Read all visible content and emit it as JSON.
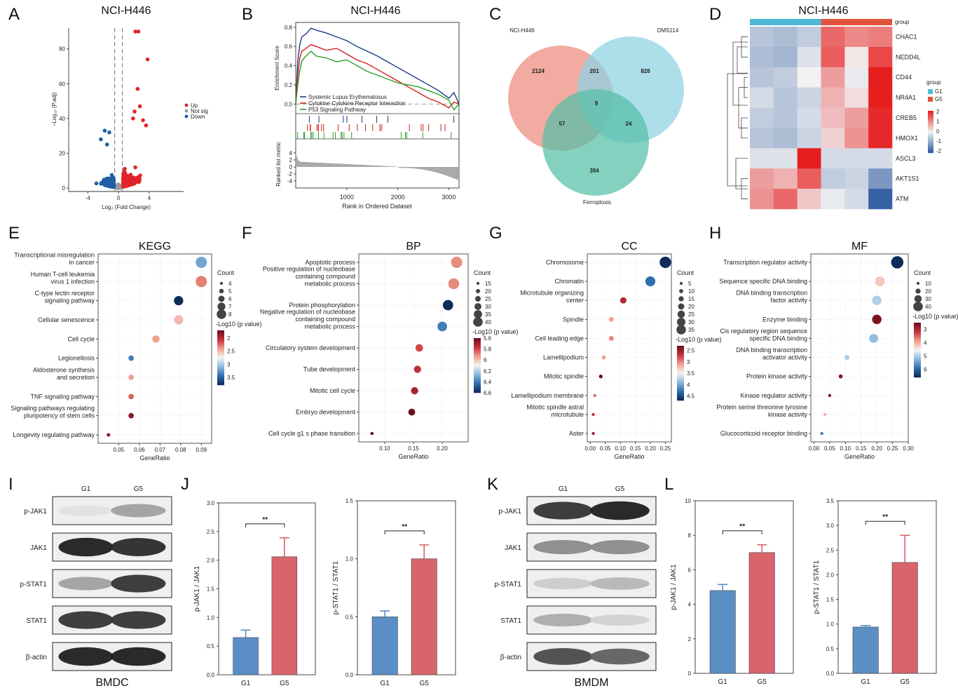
{
  "panels": {
    "A": "A",
    "B": "B",
    "C": "C",
    "D": "D",
    "E": "E",
    "F": "F",
    "G": "G",
    "H": "H",
    "I": "I",
    "J": "J",
    "K": "K",
    "L": "L"
  },
  "colors": {
    "up": "#e0242b",
    "down": "#1f5fa6",
    "notsig": "#9a9a9a",
    "venn1": "#eb8a7c",
    "venn2": "#8ed3e3",
    "venn3": "#55bfa8",
    "barG1": "#5b8ec4",
    "barG5": "#d9646c",
    "heat_low": "#2c5aa0",
    "heat_mid": "#f2f2f2",
    "heat_high": "#e61e1e",
    "group_g1": "#4db8d8",
    "group_g5": "#e0533a"
  },
  "chart_data": [
    {
      "id": "A",
      "type": "scatter",
      "title": "NCI-H446",
      "xlabel": "Log₂ (Fold Change)",
      "ylabel": "−Log₁₀ (P.adj)",
      "xticks": [
        -4,
        0,
        4
      ],
      "yticks": [
        0,
        20,
        40,
        60,
        80
      ],
      "xlim": [
        -6.5,
        8.5
      ],
      "ylim": [
        -2,
        92
      ],
      "thresholds_x": [
        -0.5,
        0.5
      ],
      "legend": [
        "Up",
        "Not sig",
        "Down"
      ],
      "up_highlights": [
        [
          2.2,
          90
        ],
        [
          2.6,
          90
        ],
        [
          3.8,
          74
        ],
        [
          2.5,
          57
        ],
        [
          3.6,
          36
        ],
        [
          2.1,
          44
        ],
        [
          1.9,
          40
        ],
        [
          2.8,
          47
        ],
        [
          3.2,
          39
        ]
      ],
      "down_highlights": [
        [
          -1.8,
          33
        ],
        [
          -1.2,
          32
        ],
        [
          -2.3,
          28
        ],
        [
          -1.5,
          25
        ]
      ]
    },
    {
      "id": "B",
      "type": "line",
      "title": "NCI-H446",
      "xlabel": "Rank in Ordered Dataset",
      "ylabel": "Enrichment Score",
      "ylabel2": "Ranked list metric",
      "xticks": [
        1000,
        2000,
        3000
      ],
      "yticks": [
        0.0,
        0.2,
        0.4,
        0.6,
        0.8
      ],
      "yticks2": [
        4,
        2,
        0,
        -2,
        -4
      ],
      "xlim": [
        0,
        3200
      ],
      "ylim": [
        -0.1,
        0.85
      ],
      "series": [
        {
          "name": "Systemic Lupus Erythematosus",
          "color": "#1a3a8a",
          "x": [
            0,
            40,
            80,
            120,
            200,
            300,
            400,
            600,
            800,
            1000,
            1200,
            1400,
            1600,
            1800,
            2000,
            2200,
            2400,
            2600,
            2800,
            3000,
            3100,
            3200
          ],
          "y": [
            0,
            0.45,
            0.62,
            0.7,
            0.73,
            0.79,
            0.77,
            0.74,
            0.7,
            0.66,
            0.6,
            0.55,
            0.5,
            0.44,
            0.38,
            0.32,
            0.26,
            0.2,
            0.14,
            0.06,
            0.12,
            0.0
          ]
        },
        {
          "name": "Cytokine Cytokine Receptor Interaction",
          "color": "#d42020",
          "x": [
            0,
            40,
            80,
            120,
            200,
            300,
            400,
            600,
            800,
            1000,
            1200,
            1400,
            1600,
            1800,
            2000,
            2200,
            2400,
            2600,
            2800,
            3000,
            3100,
            3200
          ],
          "y": [
            0,
            0.3,
            0.48,
            0.55,
            0.58,
            0.62,
            0.6,
            0.56,
            0.58,
            0.52,
            0.46,
            0.42,
            0.36,
            0.3,
            0.24,
            0.18,
            0.12,
            0.06,
            0.02,
            -0.04,
            0.02,
            0.0
          ]
        },
        {
          "name": "P53 Signaling Pathway",
          "color": "#2aa02a",
          "x": [
            0,
            40,
            80,
            120,
            200,
            300,
            400,
            600,
            800,
            1000,
            1200,
            1400,
            1600,
            1800,
            2000,
            2200,
            2400,
            2600,
            2800,
            3000,
            3100,
            3200
          ],
          "y": [
            0,
            0.2,
            0.35,
            0.45,
            0.5,
            0.55,
            0.5,
            0.48,
            0.44,
            0.46,
            0.4,
            0.34,
            0.3,
            0.26,
            0.22,
            0.2,
            0.18,
            0.14,
            0.1,
            0.04,
            -0.06,
            0.0
          ]
        }
      ]
    },
    {
      "id": "C",
      "type": "venn",
      "sets": [
        "NCI-H446",
        "DMS114",
        "Ferroptosis"
      ],
      "regions": {
        "a_only": "2124",
        "b_only": "828",
        "c_only": "394",
        "ab": "201",
        "ac": "57",
        "bc": "24",
        "abc": "9"
      }
    },
    {
      "id": "D",
      "type": "heatmap",
      "title": "NCI-H446",
      "rows": [
        "CHAC1",
        "NEDD4L",
        "CD44",
        "NR4A1",
        "CREB5",
        "HMOX1",
        "ASCL3",
        "AKT1S1",
        "ATM"
      ],
      "group_label": "group",
      "groups": [
        "G1",
        "G5"
      ],
      "scale_ticks": [
        "2",
        "1",
        "0",
        "-1",
        "-2"
      ],
      "values": [
        [
          -0.6,
          -0.7,
          -0.5,
          1.3,
          1.0,
          1.1
        ],
        [
          -0.7,
          -0.8,
          -0.2,
          1.4,
          0.1,
          1.6
        ],
        [
          -0.6,
          -0.5,
          0.0,
          0.8,
          -0.1,
          2.0
        ],
        [
          -0.3,
          -0.6,
          -0.4,
          0.6,
          0.2,
          2.0
        ],
        [
          -0.5,
          -0.6,
          -0.3,
          0.5,
          0.8,
          1.9
        ],
        [
          -0.6,
          -0.7,
          -0.4,
          0.3,
          0.9,
          1.9
        ],
        [
          -0.2,
          -0.2,
          2.0,
          -0.3,
          -0.3,
          -0.3
        ],
        [
          0.8,
          0.6,
          1.4,
          -0.5,
          -0.4,
          -1.2
        ],
        [
          0.9,
          1.3,
          0.4,
          -0.1,
          -0.3,
          -1.9
        ]
      ]
    },
    {
      "id": "E",
      "type": "scatter",
      "title": "KEGG",
      "xlabel": "GeneRatio",
      "xticks": [
        0.05,
        0.06,
        0.07,
        0.08,
        0.09
      ],
      "xlim": [
        0.04,
        0.095
      ],
      "count_label": "Count",
      "count_ticks": [
        4,
        5,
        6,
        7,
        8
      ],
      "color_label": "-Log10 (p value)",
      "color_ticks": [
        2.0,
        2.5,
        3.0,
        3.5
      ],
      "color_range": [
        1.7,
        3.8
      ],
      "terms": [
        {
          "label": [
            "Transcriptional misregulation",
            "in cancer"
          ],
          "x": 0.09,
          "count": 8,
          "p": 3.2
        },
        {
          "label": [
            "Human T-cell leukemia",
            "virus 1 infection"
          ],
          "x": 0.09,
          "count": 8,
          "p": 2.3
        },
        {
          "label": [
            "C-type lectin receptor",
            "signaling pathway"
          ],
          "x": 0.079,
          "count": 7,
          "p": 3.8
        },
        {
          "label": [
            "Cellular senescence"
          ],
          "x": 0.079,
          "count": 7,
          "p": 2.5
        },
        {
          "label": [
            "Cell cycle"
          ],
          "x": 0.068,
          "count": 6,
          "p": 2.4
        },
        {
          "label": [
            "Legionellosis"
          ],
          "x": 0.056,
          "count": 5,
          "p": 3.4
        },
        {
          "label": [
            "Aldosterone synthesis",
            "and secretion"
          ],
          "x": 0.056,
          "count": 5,
          "p": 2.4
        },
        {
          "label": [
            "TNF signaling pathway"
          ],
          "x": 0.056,
          "count": 5,
          "p": 2.2
        },
        {
          "label": [
            "Signaling pathways regulating",
            "pluripotency of stem cells"
          ],
          "x": 0.056,
          "count": 5,
          "p": 1.8
        },
        {
          "label": [
            "Longevity regulating pathway"
          ],
          "x": 0.045,
          "count": 4,
          "p": 1.8
        }
      ]
    },
    {
      "id": "F",
      "type": "scatter",
      "title": "BP",
      "xlabel": "GeneRatio",
      "xticks": [
        0.1,
        0.15,
        0.2
      ],
      "xlim": [
        0.055,
        0.245
      ],
      "count_label": "Count",
      "count_ticks": [
        15,
        20,
        25,
        30,
        35,
        40
      ],
      "color_label": "-Log10 (p value)",
      "color_ticks": [
        5.6,
        5.8,
        6.0,
        6.2,
        6.4,
        6.6
      ],
      "color_range": [
        5.6,
        6.6
      ],
      "terms": [
        {
          "label": [
            "Apoptotic process"
          ],
          "x": 0.225,
          "count": 40,
          "p": 5.9
        },
        {
          "label": [
            "Positive regulation of nucleobase",
            "containing compound",
            "metabolic process"
          ],
          "x": 0.22,
          "count": 39,
          "p": 5.9
        },
        {
          "label": [
            "Protein phosphorylation"
          ],
          "x": 0.21,
          "count": 37,
          "p": 6.6
        },
        {
          "label": [
            "Negative regulation of nucleobase",
            "containing compound",
            "metabolic process"
          ],
          "x": 0.2,
          "count": 35,
          "p": 6.4
        },
        {
          "label": [
            "Circulatory system development"
          ],
          "x": 0.16,
          "count": 28,
          "p": 5.8
        },
        {
          "label": [
            "Tube development"
          ],
          "x": 0.157,
          "count": 27,
          "p": 5.75
        },
        {
          "label": [
            "Mitotic cell cycle"
          ],
          "x": 0.152,
          "count": 27,
          "p": 5.7
        },
        {
          "label": [
            "Embryo development"
          ],
          "x": 0.147,
          "count": 26,
          "p": 5.6
        },
        {
          "label": [
            "Cell cycle g1 s phase transition"
          ],
          "x": 0.078,
          "count": 14,
          "p": 5.6
        }
      ]
    },
    {
      "id": "G",
      "type": "scatter",
      "title": "CC",
      "xlabel": "GeneRatio",
      "xticks": [
        0.0,
        0.05,
        0.1,
        0.15,
        0.2,
        0.25
      ],
      "xlim": [
        -0.01,
        0.27
      ],
      "count_label": "Count",
      "count_ticks": [
        5,
        10,
        15,
        20,
        25,
        30,
        35
      ],
      "color_label": "-Log10 (p value)",
      "color_ticks": [
        2.5,
        3.0,
        3.5,
        4.0,
        4.5
      ],
      "color_range": [
        2.3,
        4.7
      ],
      "terms": [
        {
          "label": [
            "Chromosome"
          ],
          "x": 0.25,
          "count": 36,
          "p": 4.7
        },
        {
          "label": [
            "Chromatin"
          ],
          "x": 0.2,
          "count": 30,
          "p": 4.3
        },
        {
          "label": [
            "Microtubule organizing",
            "center"
          ],
          "x": 0.11,
          "count": 16,
          "p": 2.6
        },
        {
          "label": [
            "Spindle"
          ],
          "x": 0.07,
          "count": 10,
          "p": 3.1
        },
        {
          "label": [
            "Cell leading edge"
          ],
          "x": 0.07,
          "count": 10,
          "p": 3.0
        },
        {
          "label": [
            "Lamellipodium"
          ],
          "x": 0.045,
          "count": 7,
          "p": 3.1
        },
        {
          "label": [
            "Mitotic spindle"
          ],
          "x": 0.035,
          "count": 6,
          "p": 2.3
        },
        {
          "label": [
            "Lamellipodium membrane"
          ],
          "x": 0.015,
          "count": 3,
          "p": 2.9
        },
        {
          "label": [
            "Mitotic spindle astral",
            "microtubule"
          ],
          "x": 0.01,
          "count": 2,
          "p": 2.7
        },
        {
          "label": [
            "Aster"
          ],
          "x": 0.01,
          "count": 2,
          "p": 2.5
        }
      ]
    },
    {
      "id": "H",
      "type": "scatter",
      "title": "MF",
      "xlabel": "GeneRatio",
      "xticks": [
        0.0,
        0.05,
        0.1,
        0.15,
        0.2,
        0.25,
        0.3
      ],
      "xlim": [
        -0.01,
        0.3
      ],
      "count_label": "Count",
      "count_ticks": [
        10,
        20,
        30,
        40
      ],
      "color_label": "-Log10 (p value)",
      "color_ticks": [
        3,
        4,
        5,
        6
      ],
      "color_range": [
        2.5,
        6.6
      ],
      "terms": [
        {
          "label": [
            "Transcription regulator activity"
          ],
          "x": 0.265,
          "count": 44,
          "p": 6.6
        },
        {
          "label": [
            "Sequence specific DNA binding"
          ],
          "x": 0.21,
          "count": 34,
          "p": 4.2
        },
        {
          "label": [
            "DNA binding transcription",
            "factor activity"
          ],
          "x": 0.2,
          "count": 33,
          "p": 5.0
        },
        {
          "label": [
            "Enzyme binding"
          ],
          "x": 0.2,
          "count": 33,
          "p": 2.6
        },
        {
          "label": [
            "Cis regulatory region sequence",
            "specific DNA binding"
          ],
          "x": 0.19,
          "count": 31,
          "p": 5.2
        },
        {
          "label": [
            "DNA binding transcription",
            "activator activity"
          ],
          "x": 0.105,
          "count": 16,
          "p": 5.0
        },
        {
          "label": [
            "Protein kinase activity"
          ],
          "x": 0.085,
          "count": 12,
          "p": 2.7
        },
        {
          "label": [
            "Kinase regulator activity"
          ],
          "x": 0.05,
          "count": 7,
          "p": 2.7
        },
        {
          "label": [
            "Protein serine threonine tyrosine",
            "kinase activity"
          ],
          "x": 0.035,
          "count": 5,
          "p": 4.0
        },
        {
          "label": [
            "Glucocorticoid receptor binding"
          ],
          "x": 0.025,
          "count": 3,
          "p": 5.8
        }
      ]
    },
    {
      "id": "J1",
      "type": "bar",
      "categories": [
        "G1",
        "G5"
      ],
      "values": [
        0.65,
        2.06
      ],
      "errors": [
        0.13,
        0.33
      ],
      "ylabel": "p-JAK1 / JAK1",
      "ylim": [
        0,
        3.0
      ],
      "yticks": [
        "0.0",
        "0.5",
        "1.0",
        "1.5",
        "2.0",
        "2.5",
        "3.0"
      ],
      "sig": "**"
    },
    {
      "id": "J2",
      "type": "bar",
      "categories": [
        "G1",
        "G5"
      ],
      "values": [
        0.5,
        1.0
      ],
      "errors": [
        0.05,
        0.12
      ],
      "ylabel": "p-STAT1 / STAT1",
      "ylim": [
        0,
        1.5
      ],
      "yticks": [
        "0.0",
        "0.5",
        "1.0",
        "1.5"
      ],
      "sig": "**"
    },
    {
      "id": "L1",
      "type": "bar",
      "categories": [
        "G1",
        "G5"
      ],
      "values": [
        4.8,
        7.0
      ],
      "errors": [
        0.35,
        0.45
      ],
      "ylabel": "p-JAK1 / JAK1",
      "ylim": [
        0,
        10
      ],
      "yticks": [
        "0",
        "2",
        "4",
        "6",
        "8",
        "10"
      ],
      "sig": "**"
    },
    {
      "id": "L2",
      "type": "bar",
      "categories": [
        "G1",
        "G5"
      ],
      "values": [
        0.94,
        2.25
      ],
      "errors": [
        0.03,
        0.55
      ],
      "ylabel": "p-STAT1 / STAT1",
      "ylim": [
        0,
        3.5
      ],
      "yticks": [
        "0.0",
        "0.5",
        "1.0",
        "1.5",
        "2.0",
        "2.5",
        "3.0",
        "3.5"
      ],
      "sig": "**"
    }
  ],
  "blots": [
    {
      "id": "I",
      "lanes": [
        "G1",
        "G5"
      ],
      "caption": "BMDC",
      "rows": [
        {
          "label": "p-JAK1",
          "bands": [
            0.05,
            0.35
          ]
        },
        {
          "label": "JAK1",
          "bands": [
            0.95,
            0.9
          ]
        },
        {
          "label": "p-STAT1",
          "bands": [
            0.35,
            0.85
          ]
        },
        {
          "label": "STAT1",
          "bands": [
            0.85,
            0.85
          ]
        },
        {
          "label": "β-actin",
          "bands": [
            0.95,
            0.95
          ]
        }
      ]
    },
    {
      "id": "K",
      "lanes": [
        "G1",
        "G5"
      ],
      "caption": "BMDM",
      "rows": [
        {
          "label": "p-JAK1",
          "bands": [
            0.85,
            0.95
          ]
        },
        {
          "label": "JAK1",
          "bands": [
            0.45,
            0.45
          ]
        },
        {
          "label": "p-STAT1",
          "bands": [
            0.15,
            0.25
          ]
        },
        {
          "label": "STAT1",
          "bands": [
            0.3,
            0.12
          ]
        },
        {
          "label": "β-actin",
          "bands": [
            0.75,
            0.65
          ]
        }
      ]
    }
  ]
}
